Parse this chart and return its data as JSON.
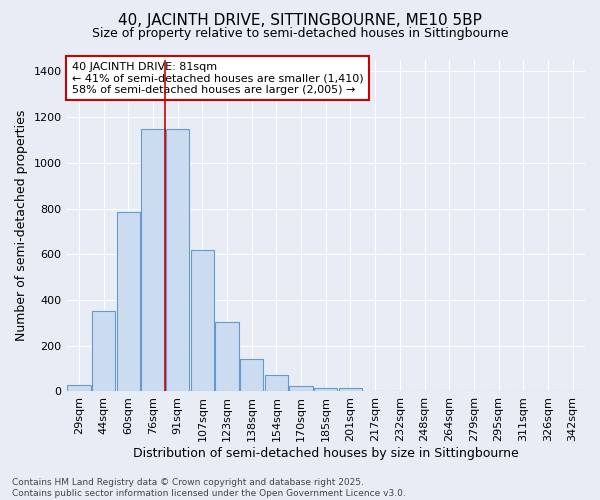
{
  "title": "40, JACINTH DRIVE, SITTINGBOURNE, ME10 5BP",
  "subtitle": "Size of property relative to semi-detached houses in Sittingbourne",
  "xlabel": "Distribution of semi-detached houses by size in Sittingbourne",
  "ylabel": "Number of semi-detached properties",
  "categories": [
    "29sqm",
    "44sqm",
    "60sqm",
    "76sqm",
    "91sqm",
    "107sqm",
    "123sqm",
    "138sqm",
    "154sqm",
    "170sqm",
    "185sqm",
    "201sqm",
    "217sqm",
    "232sqm",
    "248sqm",
    "264sqm",
    "279sqm",
    "295sqm",
    "311sqm",
    "326sqm",
    "342sqm"
  ],
  "values": [
    30,
    350,
    785,
    1150,
    1150,
    620,
    305,
    140,
    70,
    25,
    15,
    15,
    0,
    0,
    0,
    0,
    0,
    0,
    0,
    0,
    0
  ],
  "bar_color": "#ccdcf0",
  "bar_edge_color": "#6699cc",
  "background_color": "#e8edf5",
  "grid_color": "#ffffff",
  "annotation_text": "40 JACINTH DRIVE: 81sqm\n← 41% of semi-detached houses are smaller (1,410)\n58% of semi-detached houses are larger (2,005) →",
  "vline_x": 3.5,
  "vline_color": "#cc0000",
  "ylim": [
    0,
    1450
  ],
  "yticks": [
    0,
    200,
    400,
    600,
    800,
    1000,
    1200,
    1400
  ],
  "footnote": "Contains HM Land Registry data © Crown copyright and database right 2025.\nContains public sector information licensed under the Open Government Licence v3.0.",
  "annotation_box_facecolor": "#ffffff",
  "annotation_box_edgecolor": "#cc0000",
  "title_fontsize": 11,
  "subtitle_fontsize": 9,
  "axis_label_fontsize": 9,
  "tick_label_fontsize": 8,
  "annotation_fontsize": 8,
  "footnote_fontsize": 6.5
}
